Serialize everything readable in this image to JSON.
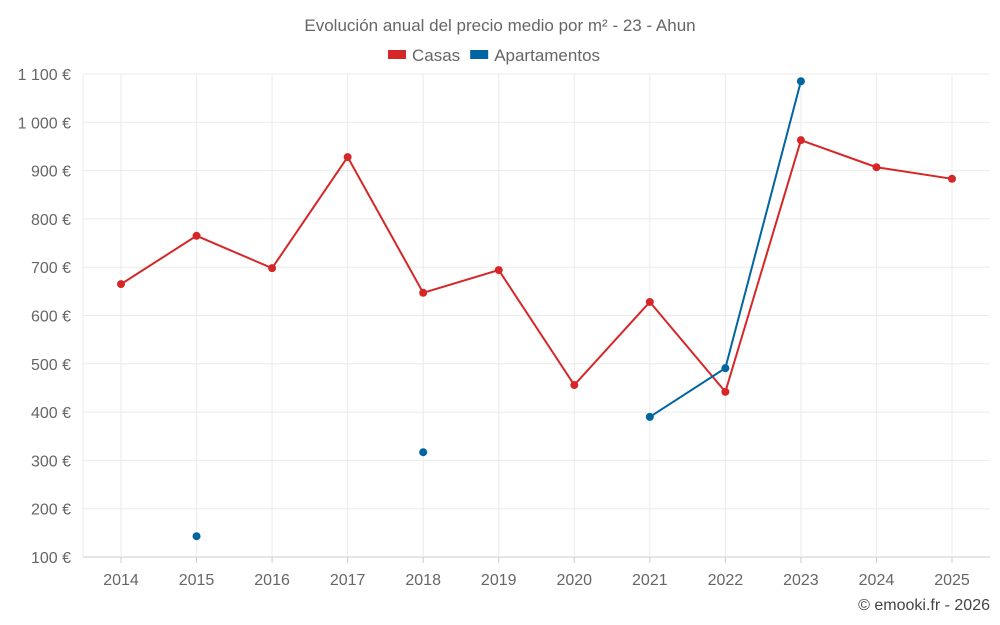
{
  "chart_data": {
    "type": "line",
    "title": "Evolución anual del precio medio por m² - 23 - Ahun",
    "xlabel": "",
    "ylabel": "",
    "categories": [
      "2014",
      "2015",
      "2016",
      "2017",
      "2018",
      "2019",
      "2020",
      "2021",
      "2022",
      "2023",
      "2024",
      "2025"
    ],
    "y_ticks": [
      "100 €",
      "200 €",
      "300 €",
      "400 €",
      "500 €",
      "600 €",
      "700 €",
      "800 €",
      "900 €",
      "1 000 €",
      "1 100 €"
    ],
    "ylim": [
      100,
      1100
    ],
    "grid": true,
    "legend_position": "top-center",
    "series": [
      {
        "name": "Casas",
        "color": "#d62728",
        "values": [
          665,
          765,
          698,
          928,
          647,
          694,
          456,
          628,
          442,
          963,
          907,
          883
        ]
      },
      {
        "name": "Apartamentos",
        "color": "#0065a0",
        "values": [
          null,
          143,
          null,
          null,
          317,
          null,
          null,
          390,
          491,
          1085,
          null,
          null
        ]
      }
    ],
    "credit": "© emooki.fr - 2026"
  }
}
